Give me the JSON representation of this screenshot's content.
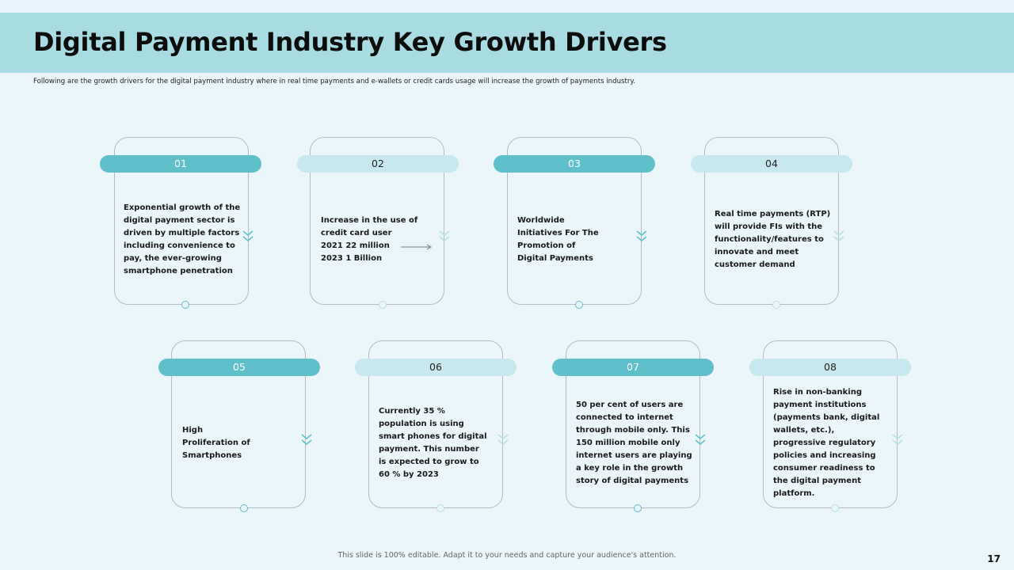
{
  "slide": {
    "title": "Digital Payment Industry Key Growth Drivers",
    "subtitle": "Following are the growth drivers for the digital payment industry where in real time payments and e-wallets or credit cards usage will increase the growth of payments industry.",
    "footer": "This slide is 100% editable. Adapt it to your needs and capture your audience's attention.",
    "page_number": "17"
  },
  "colors": {
    "title_bar": "#a9dce2",
    "background": "#eaf6f9",
    "pill_dark": "#5fbfcb",
    "pill_light": "#c6e8ee"
  },
  "drivers": [
    {
      "number": "01",
      "lines": [
        "Exponential growth of the",
        "digital payment sector is",
        "driven by multiple factors",
        "including convenience to",
        "pay, the ever-growing",
        "smartphone penetration"
      ]
    },
    {
      "number": "02",
      "lines": [
        "Increase in the use of",
        "credit card user",
        "2021 22 million",
        "2023 1 Billion"
      ]
    },
    {
      "number": "03",
      "lines": [
        "Worldwide",
        "Initiatives For The",
        "Promotion of",
        "Digital Payments"
      ]
    },
    {
      "number": "04",
      "lines": [
        "Real time payments (RTP)",
        "will provide FIs with the",
        "functionality/features to",
        "innovate and meet",
        "customer demand"
      ]
    },
    {
      "number": "05",
      "lines": [
        "High",
        "Proliferation of",
        "Smartphones"
      ]
    },
    {
      "number": "06",
      "lines": [
        "Currently 35 %",
        "population is using",
        "smart phones for digital",
        "payment. This number",
        "is expected to grow to",
        "60 % by 2023"
      ]
    },
    {
      "number": "07",
      "lines": [
        "50 per cent of users are",
        "connected to internet",
        "through mobile only. This",
        "150 million mobile only",
        "internet users are playing",
        "a key role in the growth",
        "story of digital payments"
      ]
    },
    {
      "number": "08",
      "lines": [
        "Rise in non-banking",
        "payment institutions",
        "(payments bank, digital",
        "wallets, etc.),",
        "progressive regulatory",
        "policies and increasing",
        "consumer readiness to",
        "the digital payment",
        "platform."
      ]
    }
  ]
}
